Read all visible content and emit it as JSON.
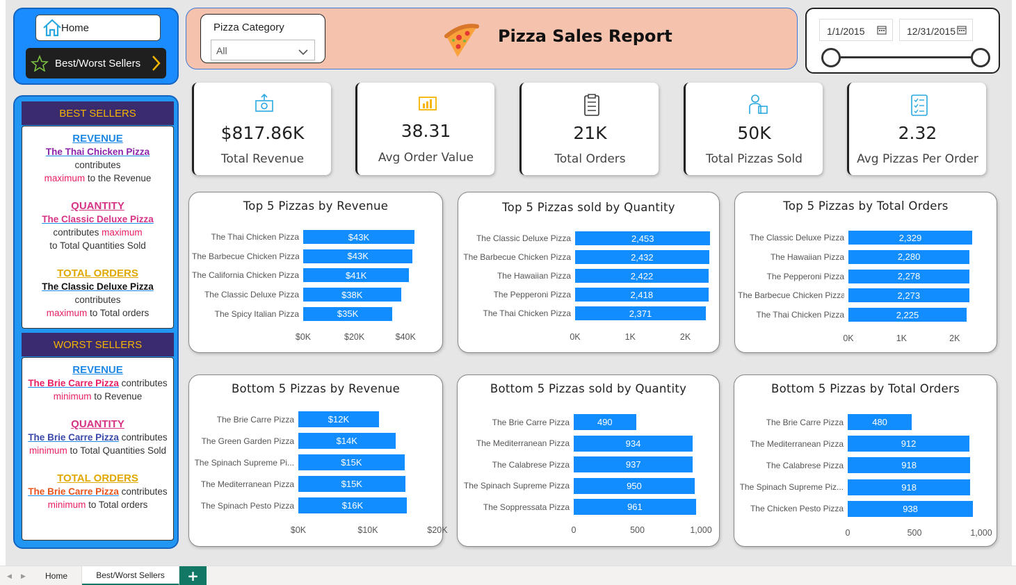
{
  "nav": {
    "home_label": "Home",
    "bestworst_label": "Best/Worst Sellers"
  },
  "best_sellers": {
    "title": "BEST SELLERS",
    "revenue": {
      "heading": "REVENUE",
      "pizza": "The Thai Chicken Pizza",
      "line1": "contributes",
      "line2_a": "maximum",
      "line2_b": " to the Revenue"
    },
    "quantity": {
      "heading": "QUANTITY",
      "pizza": "The Classic Deluxe Pizza",
      "line1_a": "contributes ",
      "line1_b": "maximum",
      "line2": "to Total Quantities Sold"
    },
    "orders": {
      "heading": "TOTAL ORDERS",
      "pizza": "The Classic Deluxe Pizza",
      "line1": "contributes",
      "line2_a": "maximum",
      "line2_b": " to Total orders"
    }
  },
  "worst_sellers": {
    "title": "WORST SELLERS",
    "revenue": {
      "heading": "REVENUE",
      "pizza": "The Brie Carre Pizza",
      "after": " contributes",
      "line2_a": "minimum",
      "line2_b": " to Revenue"
    },
    "quantity": {
      "heading": "QUANTITY",
      "pizza": "The Brie Carre Pizza",
      "after": " contributes",
      "line2_a": "minimum",
      "line2_b": " to Total Quantities Sold"
    },
    "orders": {
      "heading": "TOTAL ORDERS",
      "pizza": "The Brie Carre Pizza",
      "after": " contributes",
      "line2_a": "minimum",
      "line2_b": " to Total orders"
    }
  },
  "filter": {
    "label": "Pizza Category",
    "value": "All"
  },
  "header": {
    "title": "Pizza Sales Report"
  },
  "dates": {
    "start": "1/1/2015",
    "end": "12/31/2015",
    "range_start_fraction": 0,
    "range_end_fraction": 1
  },
  "kpis": [
    {
      "value": "$817.86K",
      "label": "Total Revenue",
      "icon": "money-icon"
    },
    {
      "value": "38.31",
      "label": "Avg Order Value",
      "icon": "bar-chart-icon"
    },
    {
      "value": "21K",
      "label": "Total Orders",
      "icon": "clipboard-icon"
    },
    {
      "value": "50K",
      "label": "Total Pizzas Sold",
      "icon": "delivery-icon"
    },
    {
      "value": "2.32",
      "label": "Avg Pizzas Per Order",
      "icon": "checklist-icon"
    }
  ],
  "colors": {
    "bar": "#118dff",
    "panel": "#2196f3",
    "header_bg": "#3a2a6e",
    "header_text": "#f5b400",
    "title_bg": "#f4c2ad"
  },
  "chart_data": [
    {
      "type": "bar",
      "title": "Top 5 Pizzas by Revenue",
      "categories": [
        "The Thai Chicken Pizza",
        "The Barbecue Chicken Pizza",
        "The California Chicken Pizza",
        "The Classic Deluxe Pizza",
        "The Spicy Italian Pizza"
      ],
      "values": [
        43434,
        42768,
        41410,
        38180,
        34831
      ],
      "data_labels": [
        "$43K",
        "$43K",
        "$41K",
        "$38K",
        "$35K"
      ],
      "xlim": [
        0,
        44000
      ],
      "ticks": [
        "$0K",
        "$20K",
        "$40K"
      ],
      "tick_values": [
        0,
        20000,
        40000
      ]
    },
    {
      "type": "bar",
      "title": "Top 5 Pizzas sold by Quantity",
      "categories": [
        "The Classic Deluxe Pizza",
        "The Barbecue Chicken Pizza",
        "The Hawaiian Pizza",
        "The Pepperoni Pizza",
        "The Thai Chicken Pizza"
      ],
      "values": [
        2453,
        2432,
        2422,
        2418,
        2371
      ],
      "data_labels": [
        "2,453",
        "2,432",
        "2,422",
        "2,418",
        "2,371"
      ],
      "xlim": [
        0,
        2460
      ],
      "ticks": [
        "0K",
        "1K",
        "2K"
      ],
      "tick_values": [
        0,
        1000,
        2000
      ]
    },
    {
      "type": "bar",
      "title": "Top 5 Pizzas by Total Orders",
      "categories": [
        "The Classic Deluxe Pizza",
        "The Hawaiian Pizza",
        "The Pepperoni Pizza",
        "The Barbecue Chicken Pizza",
        "The Thai Chicken Pizza"
      ],
      "values": [
        2329,
        2280,
        2278,
        2273,
        2225
      ],
      "data_labels": [
        "2,329",
        "2,280",
        "2,278",
        "2,273",
        "2,225"
      ],
      "xlim": [
        0,
        2330
      ],
      "ticks": [
        "0K",
        "1K",
        "2K"
      ],
      "tick_values": [
        0,
        1000,
        2000
      ]
    },
    {
      "type": "bar",
      "title": "Bottom 5 Pizzas by Revenue",
      "categories": [
        "The Brie Carre Pizza",
        "The Green Garden Pizza",
        "The Spinach Supreme Pi...",
        "The Mediterranean Pizza",
        "The Spinach Pesto Pizza"
      ],
      "values": [
        11588,
        13955,
        15277,
        15360,
        15596
      ],
      "data_labels": [
        "$12K",
        "$14K",
        "$15K",
        "$15K",
        "$16K"
      ],
      "xlim": [
        0,
        20000
      ],
      "ticks": [
        "$0K",
        "$10K",
        "$20K"
      ],
      "tick_values": [
        0,
        10000,
        20000
      ]
    },
    {
      "type": "bar",
      "title": "Bottom 5 Pizzas sold by Quantity",
      "categories": [
        "The Brie Carre Pizza",
        "The Mediterranean Pizza",
        "The Calabrese Pizza",
        "The Spinach Supreme Pizza",
        "The Soppressata Pizza"
      ],
      "values": [
        490,
        934,
        937,
        950,
        961
      ],
      "data_labels": [
        "490",
        "934",
        "937",
        "950",
        "961"
      ],
      "xlim": [
        0,
        1000
      ],
      "ticks": [
        "0",
        "500",
        "1,000"
      ],
      "tick_values": [
        0,
        500,
        1000
      ]
    },
    {
      "type": "bar",
      "title": "Bottom 5 Pizzas by Total Orders",
      "categories": [
        "The Brie Carre Pizza",
        "The Mediterranean Pizza",
        "The Calabrese Pizza",
        "The Spinach Supreme Piz...",
        "The Chicken Pesto Pizza"
      ],
      "values": [
        480,
        912,
        918,
        918,
        938
      ],
      "data_labels": [
        "480",
        "912",
        "918",
        "918",
        "938"
      ],
      "xlim": [
        0,
        1000
      ],
      "ticks": [
        "0",
        "500",
        "1,000"
      ],
      "tick_values": [
        0,
        500,
        1000
      ]
    }
  ],
  "tabs": [
    {
      "label": "Home"
    },
    {
      "label": "Best/Worst Sellers"
    }
  ],
  "add_tab_label": "+"
}
